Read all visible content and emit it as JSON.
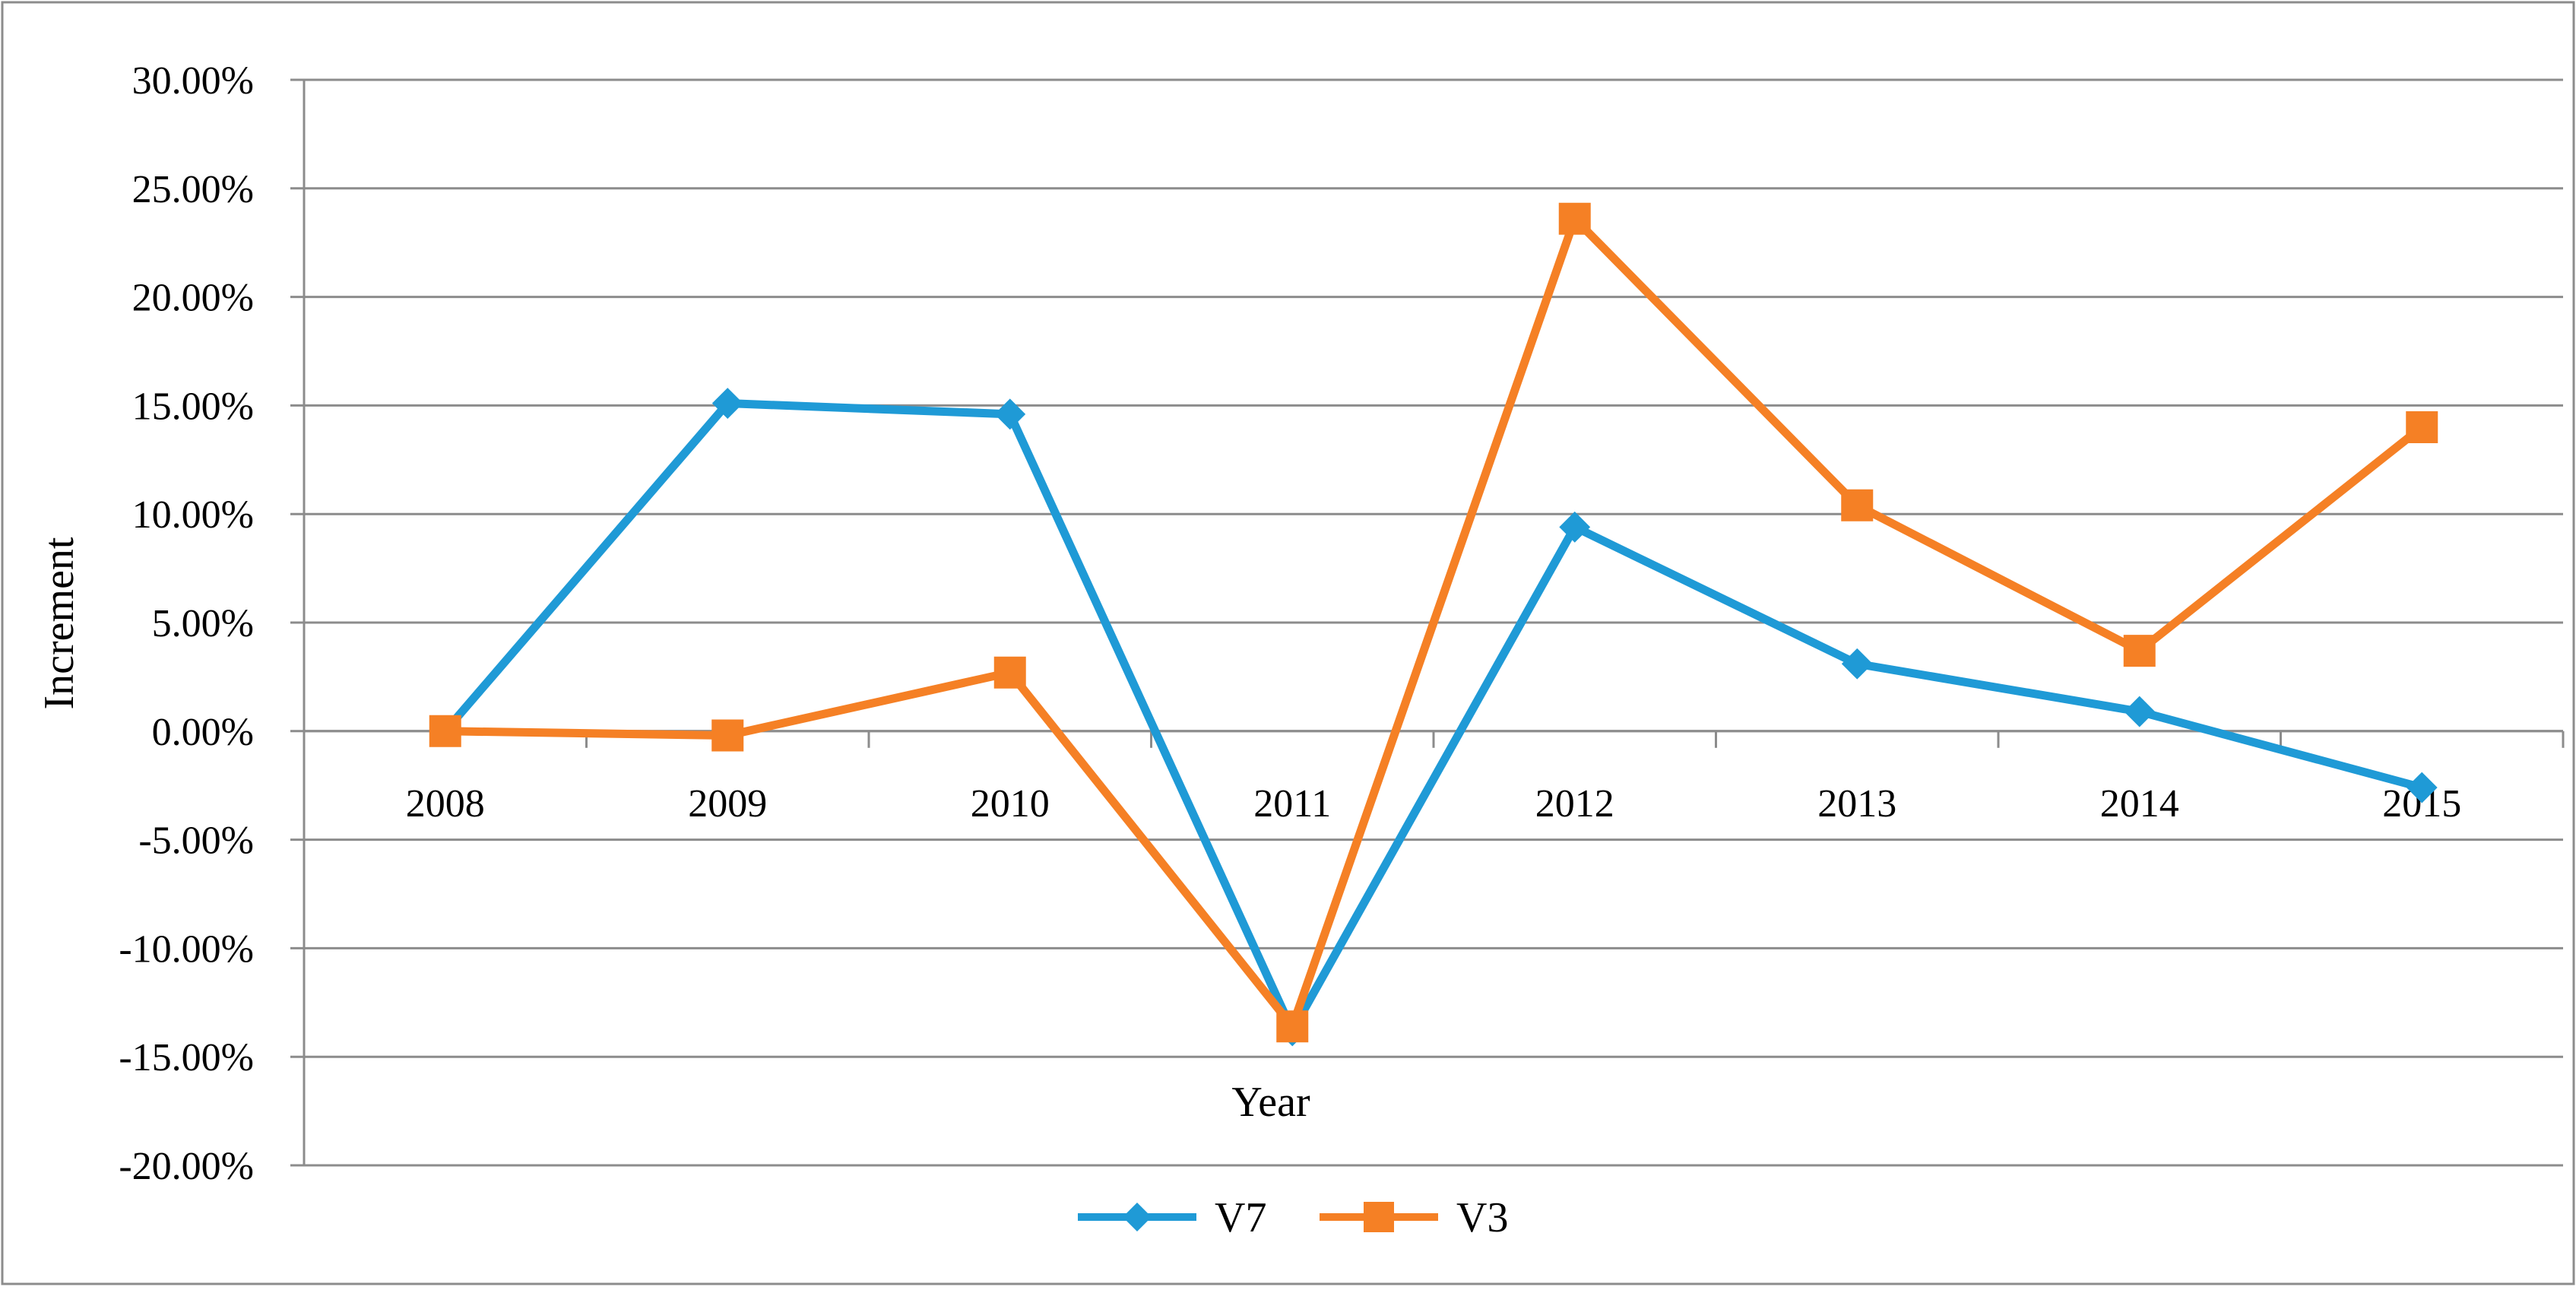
{
  "chart_data": {
    "type": "line",
    "title": "",
    "xlabel": "Year",
    "ylabel": "Increment",
    "categories": [
      "2008",
      "2009",
      "2010",
      "2011",
      "2012",
      "2013",
      "2014",
      "2015"
    ],
    "series": [
      {
        "name": "V7",
        "color": "#1f9ad6",
        "marker": "diamond",
        "values": [
          0.0,
          15.1,
          14.6,
          -13.8,
          9.4,
          3.1,
          0.9,
          -2.6
        ]
      },
      {
        "name": "V3",
        "color": "#f58025",
        "marker": "square",
        "values": [
          0.0,
          -0.2,
          2.7,
          -13.6,
          23.6,
          10.4,
          3.7,
          14.0
        ]
      }
    ],
    "ylim": [
      -20,
      30
    ],
    "ytick_step": 5,
    "ytick_labels": [
      "30.00%",
      "25.00%",
      "20.00%",
      "15.00%",
      "10.00%",
      "5.00%",
      "0.00%",
      "-5.00%",
      "-10.00%",
      "-15.00%",
      "-20.00%"
    ],
    "grid": true,
    "legend_position": "bottom-center"
  }
}
